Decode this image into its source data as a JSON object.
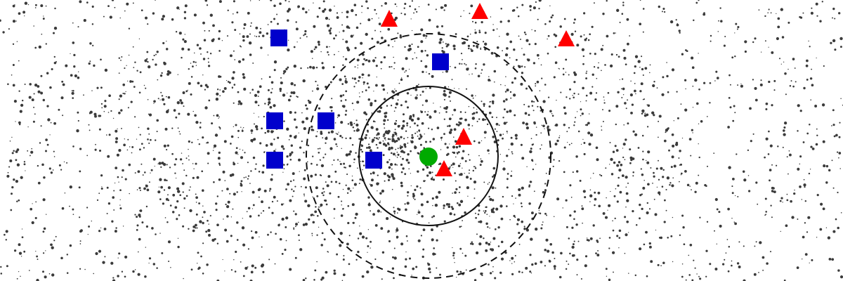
{
  "diagram": {
    "type": "k-nearest-neighbors",
    "colors": {
      "class_a": "#0000cc",
      "class_b": "#ff0000",
      "query": "#00aa00",
      "circle_stroke": "#111111",
      "noise": "#3a3a3a",
      "background": "#ffffff"
    },
    "query_point": {
      "shape": "circle",
      "color_key": "query"
    },
    "neighborhoods": [
      {
        "name": "inner-neighborhood-circle",
        "style": "solid",
        "encloses_k": 3
      },
      {
        "name": "outer-neighborhood-circle",
        "style": "dashed",
        "encloses_k": 5
      }
    ],
    "class_a_points": {
      "shape": "square",
      "count": 6
    },
    "class_b_points": {
      "shape": "triangle",
      "count": 5
    }
  }
}
